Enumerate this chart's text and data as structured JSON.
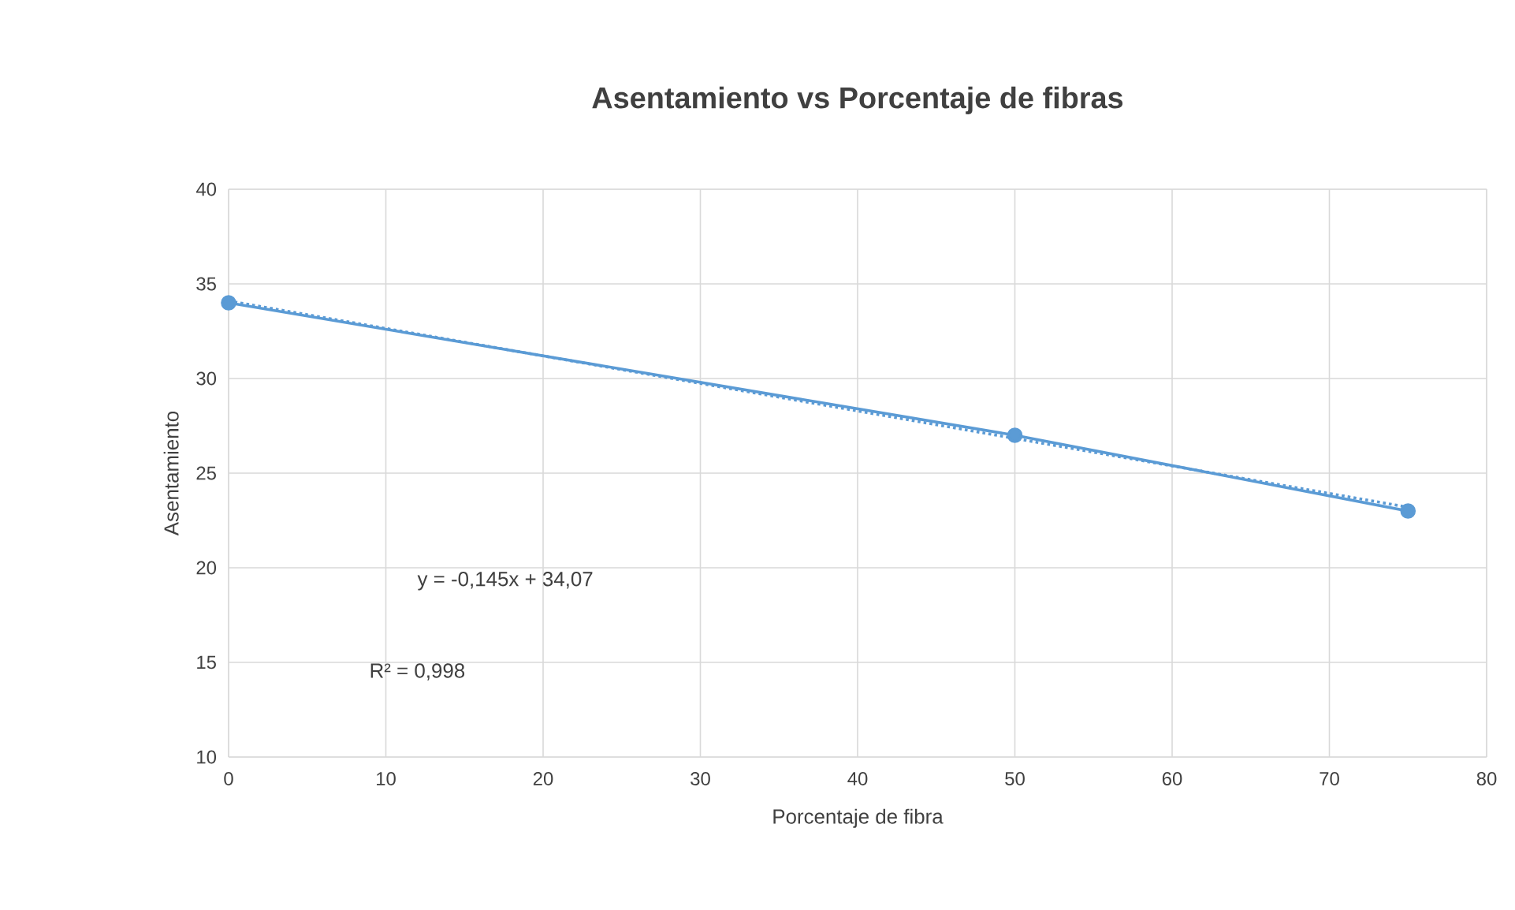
{
  "chart_data": {
    "type": "line",
    "title": "Asentamiento vs  Porcentaje de fibras",
    "xlabel": "Porcentaje de fibra",
    "ylabel": "Asentamiento",
    "series": [
      {
        "color": "#5b9bd5",
        "x": [
          0,
          50,
          75
        ],
        "values": [
          34,
          27,
          23
        ],
        "marker": "circle",
        "line_style": "solid"
      },
      {
        "color": "#5b9bd5",
        "x": [
          0,
          75
        ],
        "values": [
          34.1,
          23.2
        ],
        "marker": "none",
        "line_style": "dotted"
      }
    ],
    "xlim": [
      0,
      80
    ],
    "xticks": [
      0,
      10,
      20,
      30,
      40,
      50,
      60,
      70,
      80
    ],
    "ylim": [
      10,
      40
    ],
    "yticks": [
      10,
      15,
      20,
      25,
      30,
      35,
      40
    ],
    "grid": true,
    "annotations": [
      "y = -0,145x + 34,07",
      "R² = 0,998"
    ]
  }
}
